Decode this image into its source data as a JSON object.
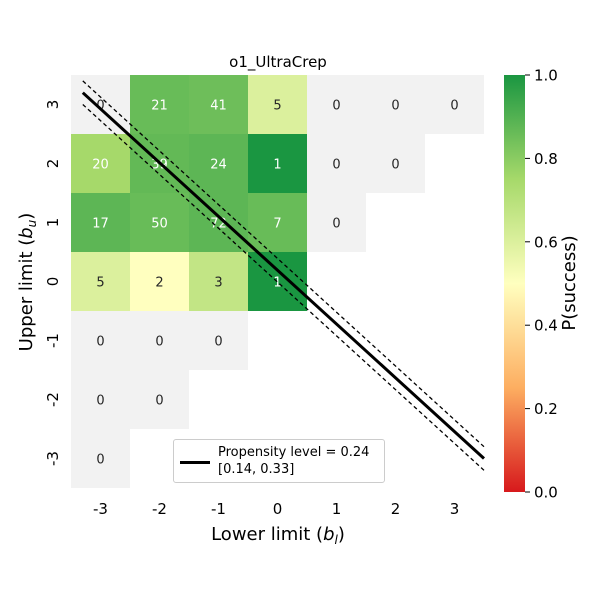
{
  "chart_data": {
    "type": "heatmap",
    "title": "o1_UltraCrep",
    "xlabel": "Lower limit (",
    "xlabel_sub": "b",
    "xlabel_subscript": "l",
    "xlabel_end": ")",
    "ylabel": "Upper limit (",
    "ylabel_sub": "b",
    "ylabel_subscript": "u",
    "ylabel_end": ")",
    "x_ticks": [
      "-3",
      "-2",
      "-1",
      "0",
      "1",
      "2",
      "3"
    ],
    "y_ticks": [
      "3",
      "2",
      "1",
      "0",
      "-1",
      "-2",
      "-3"
    ],
    "x_values": [
      -3,
      -2,
      -1,
      0,
      1,
      2,
      3
    ],
    "y_values": [
      3,
      2,
      1,
      0,
      -1,
      -2,
      -3
    ],
    "cells": [
      {
        "x": -3,
        "y": 3,
        "count": "0",
        "p": null
      },
      {
        "x": -2,
        "y": 3,
        "count": "21",
        "p": 0.86
      },
      {
        "x": -1,
        "y": 3,
        "count": "41",
        "p": 0.85
      },
      {
        "x": 0,
        "y": 3,
        "count": "5",
        "p": 0.6
      },
      {
        "x": 1,
        "y": 3,
        "count": "0",
        "p": null
      },
      {
        "x": 2,
        "y": 3,
        "count": "0",
        "p": null
      },
      {
        "x": 3,
        "y": 3,
        "count": "0",
        "p": null
      },
      {
        "x": -3,
        "y": 2,
        "count": "20",
        "p": 0.75
      },
      {
        "x": -2,
        "y": 2,
        "count": "39",
        "p": 0.87
      },
      {
        "x": -1,
        "y": 2,
        "count": "24",
        "p": 0.88
      },
      {
        "x": 0,
        "y": 2,
        "count": "1",
        "p": 1.0
      },
      {
        "x": 1,
        "y": 2,
        "count": "0",
        "p": null
      },
      {
        "x": 2,
        "y": 2,
        "count": "0",
        "p": null
      },
      {
        "x": -3,
        "y": 1,
        "count": "17",
        "p": 0.88
      },
      {
        "x": -2,
        "y": 1,
        "count": "50",
        "p": 0.86
      },
      {
        "x": -1,
        "y": 1,
        "count": "72",
        "p": 0.88
      },
      {
        "x": 0,
        "y": 1,
        "count": "7",
        "p": 0.86
      },
      {
        "x": 1,
        "y": 1,
        "count": "0",
        "p": null
      },
      {
        "x": -3,
        "y": 0,
        "count": "5",
        "p": 0.6
      },
      {
        "x": -2,
        "y": 0,
        "count": "2",
        "p": 0.5
      },
      {
        "x": -1,
        "y": 0,
        "count": "3",
        "p": 0.67
      },
      {
        "x": 0,
        "y": 0,
        "count": "1",
        "p": 1.0
      },
      {
        "x": -3,
        "y": -1,
        "count": "0",
        "p": null
      },
      {
        "x": -2,
        "y": -1,
        "count": "0",
        "p": null
      },
      {
        "x": -1,
        "y": -1,
        "count": "0",
        "p": null
      },
      {
        "x": -3,
        "y": -2,
        "count": "0",
        "p": null
      },
      {
        "x": -2,
        "y": -2,
        "count": "0",
        "p": null
      },
      {
        "x": -3,
        "y": -3,
        "count": "0",
        "p": null
      }
    ],
    "empty_cell_color": "#f2f2f2",
    "colormap": [
      "#d7191c",
      "#fdae61",
      "#ffffbf",
      "#a6d96a",
      "#1a9641"
    ],
    "colorbar": {
      "label": "P(success)",
      "ticks": [
        "0.0",
        "0.2",
        "0.4",
        "0.6",
        "0.8",
        "1.0"
      ],
      "range": [
        0,
        1
      ]
    },
    "propensity_line": {
      "level": 0.24,
      "ci": [
        0.14,
        0.33
      ],
      "line_x_range": [
        -3.3,
        3.5
      ],
      "line_y": [
        3.2,
        -3.0
      ],
      "band_offset": 0.2,
      "color": "#000000"
    },
    "legend": {
      "line1": "Propensity level = 0.24",
      "line2": "[0.14, 0.33]",
      "placement": "lower-center"
    }
  }
}
